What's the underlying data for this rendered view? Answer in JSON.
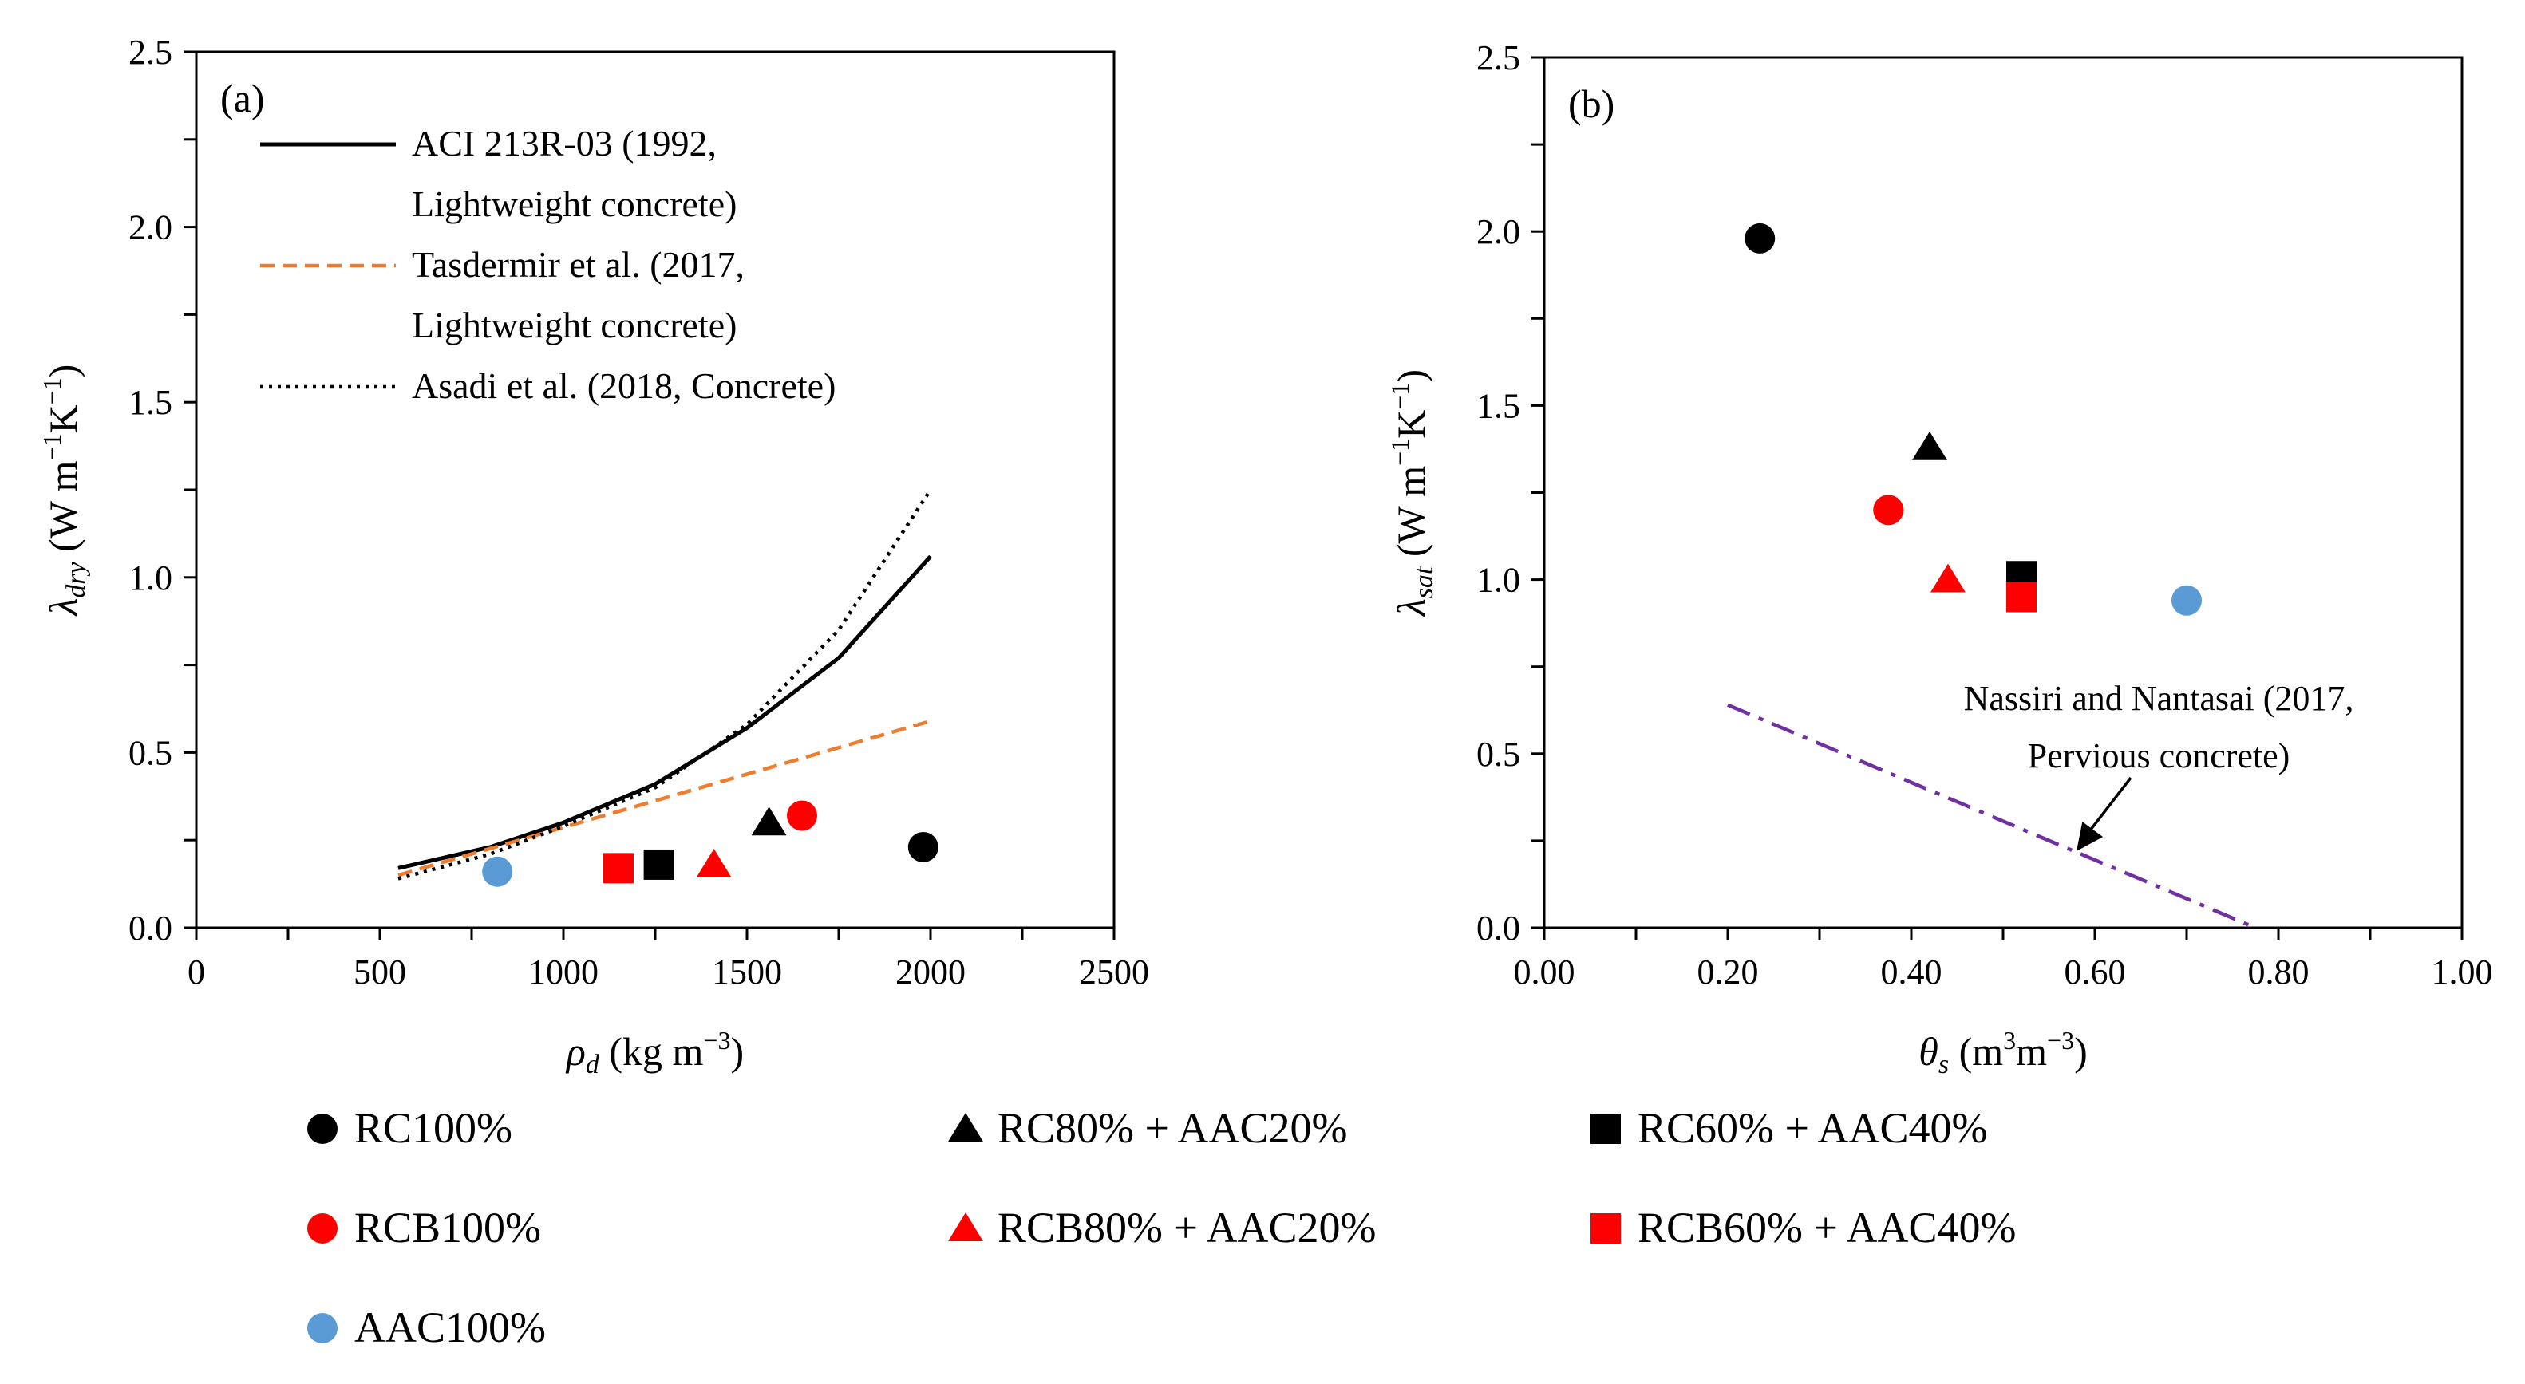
{
  "figure": {
    "legend_items": [
      {
        "key": "rc100",
        "label": "RC100%",
        "marker": "circle",
        "color": "#000000"
      },
      {
        "key": "rc80aac20",
        "label": "RC80% + AAC20%",
        "marker": "triangle",
        "color": "#000000"
      },
      {
        "key": "rc60aac40",
        "label": "RC60% + AAC40%",
        "marker": "square",
        "color": "#000000"
      },
      {
        "key": "rcb100",
        "label": "RCB100%",
        "marker": "circle",
        "color": "#ff0000"
      },
      {
        "key": "rcb80aac20",
        "label": "RCB80% + AAC20%",
        "marker": "triangle",
        "color": "#ff0000"
      },
      {
        "key": "rcb60aac40",
        "label": "RCB60% + AAC40%",
        "marker": "square",
        "color": "#ff0000"
      },
      {
        "key": "aac100",
        "label": "AAC100%",
        "marker": "circle",
        "color": "#5b9bd5"
      }
    ]
  },
  "chart_data": [
    {
      "type": "scatter",
      "panel_label": "(a)",
      "xlabel": {
        "sym": "ρ",
        "sub": "d",
        "unit": " (kg m",
        "sup": "−3",
        "end": ")"
      },
      "ylabel": {
        "sym": "λ",
        "sub": "dry",
        "unit": " (W m",
        "sup1": "−1",
        "mid": "K",
        "sup2": "−1",
        "end": ")"
      },
      "xlim": [
        0,
        2500
      ],
      "ylim": [
        0,
        2.5
      ],
      "xticks": [
        0,
        500,
        1000,
        1500,
        2000,
        2500
      ],
      "xtick_labels": [
        "0",
        "500",
        "1000",
        "1500",
        "2000",
        "2500"
      ],
      "yticks": [
        0,
        0.5,
        1.0,
        1.5,
        2.0,
        2.5
      ],
      "ytick_labels": [
        "0.0",
        "0.5",
        "1.0",
        "1.5",
        "2.0",
        "2.5"
      ],
      "legend_position": "top-left",
      "lines": [
        {
          "name": "ACI 213R-03",
          "legend_lines": [
            "ACI 213R-03 (1992,",
            "Lightweight concrete)"
          ],
          "style": "solid",
          "color": "#000000",
          "x": [
            550,
            800,
            1000,
            1250,
            1500,
            1750,
            2000
          ],
          "y": [
            0.17,
            0.23,
            0.3,
            0.41,
            0.57,
            0.77,
            1.06
          ]
        },
        {
          "name": "Tasdermir et al.",
          "legend_lines": [
            "Tasdermir et al. (2017,",
            "Lightweight concrete)"
          ],
          "style": "dashed",
          "color": "#ed7d31",
          "x": [
            550,
            2000
          ],
          "y": [
            0.15,
            0.59
          ]
        },
        {
          "name": "Asadi et al.",
          "legend_lines": [
            "Asadi et al. (2018, Concrete)"
          ],
          "style": "dotted",
          "color": "#000000",
          "x": [
            550,
            800,
            1000,
            1250,
            1500,
            1750,
            2000
          ],
          "y": [
            0.14,
            0.21,
            0.29,
            0.4,
            0.58,
            0.85,
            1.25
          ]
        }
      ],
      "points": [
        {
          "series": "rc100",
          "x": 1980,
          "y": 0.23
        },
        {
          "series": "rc80aac20",
          "x": 1560,
          "y": 0.3
        },
        {
          "series": "rc60aac40",
          "x": 1260,
          "y": 0.18
        },
        {
          "series": "rcb100",
          "x": 1650,
          "y": 0.32
        },
        {
          "series": "rcb80aac20",
          "x": 1410,
          "y": 0.18
        },
        {
          "series": "rcb60aac40",
          "x": 1150,
          "y": 0.17
        },
        {
          "series": "aac100",
          "x": 820,
          "y": 0.16
        }
      ]
    },
    {
      "type": "scatter",
      "panel_label": "(b)",
      "xlabel": {
        "sym": "θ",
        "sub": "s",
        "unit": " (m",
        "sup": "3",
        "mid": "m",
        "sup2": "−3",
        "end": ")"
      },
      "ylabel": {
        "sym": "λ",
        "sub": "sat",
        "unit": " (W m",
        "sup1": "−1",
        "mid": "K",
        "sup2": "−1",
        "end": ")"
      },
      "xlim": [
        0,
        1.0
      ],
      "ylim": [
        0,
        2.5
      ],
      "xticks": [
        0,
        0.2,
        0.4,
        0.6,
        0.8,
        1.0
      ],
      "xtick_labels": [
        "0.00",
        "0.20",
        "0.40",
        "0.60",
        "0.80",
        "1.00"
      ],
      "yticks": [
        0,
        0.5,
        1.0,
        1.5,
        2.0,
        2.5
      ],
      "ytick_labels": [
        "0.0",
        "0.5",
        "1.0",
        "1.5",
        "2.0",
        "2.5"
      ],
      "lines": [
        {
          "name": "Nassiri and Nantasai",
          "style": "dashdot",
          "color": "#7030a0",
          "x": [
            0.2,
            0.775
          ],
          "y": [
            0.64,
            0.0
          ]
        }
      ],
      "annotation": {
        "lines": [
          "Nassiri  and  Nantasai  (2017,",
          "Pervious  concrete)"
        ],
        "points_to": {
          "x": 0.58,
          "y": 0.22
        }
      },
      "points": [
        {
          "series": "rc100",
          "x": 0.235,
          "y": 1.98
        },
        {
          "series": "rc80aac20",
          "x": 0.42,
          "y": 1.38
        },
        {
          "series": "rc60aac40",
          "x": 0.52,
          "y": 1.01
        },
        {
          "series": "rcb100",
          "x": 0.375,
          "y": 1.2
        },
        {
          "series": "rcb80aac20",
          "x": 0.44,
          "y": 1.0
        },
        {
          "series": "rcb60aac40",
          "x": 0.52,
          "y": 0.95
        },
        {
          "series": "aac100",
          "x": 0.7,
          "y": 0.94
        }
      ]
    }
  ]
}
